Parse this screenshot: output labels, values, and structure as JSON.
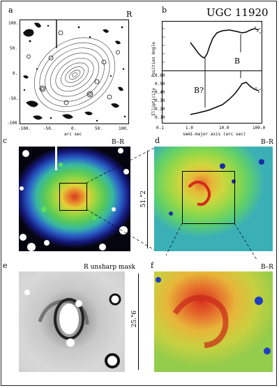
{
  "figure": {
    "galaxy_name": "UGC 11920",
    "panels": {
      "a": {
        "label": "a",
        "band": "R",
        "axis_label": "arc sec",
        "x_ticks": [
          "-100.",
          "-50.",
          "0.",
          "50.",
          "100."
        ],
        "y_ticks": [
          "100.",
          "50.",
          "0.",
          "-50.",
          "-100."
        ]
      },
      "b": {
        "label": "b",
        "top_ylabel": "Position Angle",
        "bottom_ylabel": "Ellipticity",
        "xlabel": "semi-major axis (arc sec)",
        "x_ticks": [
          "0.1",
          "1.0",
          "10.0",
          "100.0"
        ],
        "top_y_ticks": [
          "180",
          "160",
          "140",
          "120",
          "100",
          "80"
        ],
        "bottom_y_ticks": [
          "0.60",
          "0.50",
          "0.40",
          "0.30",
          "0.20",
          "0.10"
        ],
        "annotation_bar": "B",
        "annotation_bar_query": "B?"
      },
      "c": {
        "label": "c",
        "band": "B–R"
      },
      "d": {
        "label": "d",
        "band": "B–R",
        "scale": "51.\"2"
      },
      "e": {
        "label": "e",
        "band": "R unsharp mask"
      },
      "f": {
        "label": "f",
        "band": "B–R",
        "scale": "25.\"6"
      }
    }
  }
}
